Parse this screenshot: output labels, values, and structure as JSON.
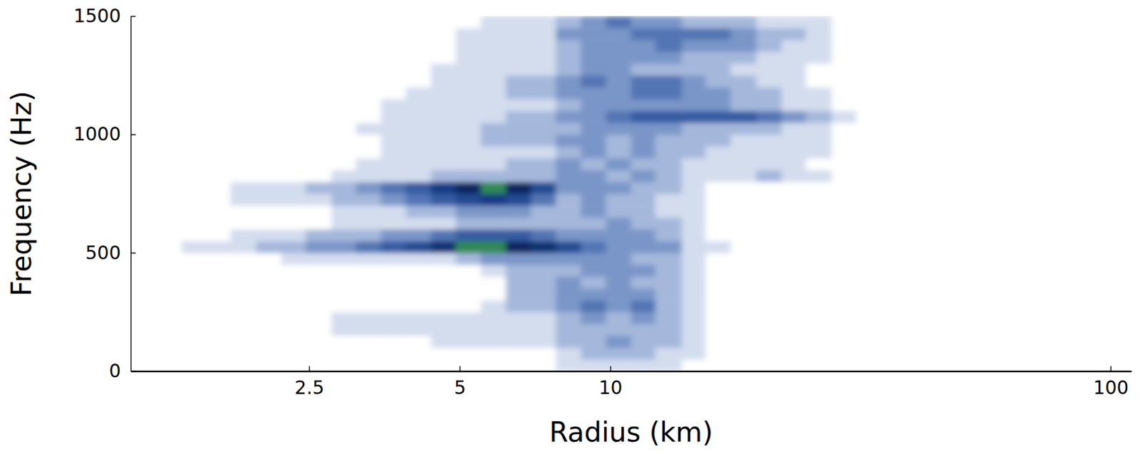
{
  "chart_data": {
    "type": "heatmap",
    "xlabel": "Radius (km)",
    "ylabel": "Frequency (Hz)",
    "log": "x",
    "grid": false,
    "xlim": [
      1.1,
      110
    ],
    "ylim": [
      0,
      1500
    ],
    "xticks": [
      2.5,
      5,
      10,
      100
    ],
    "yticks": [
      0,
      500,
      1000,
      1500
    ],
    "x_bins": [
      1.1,
      1.23,
      1.39,
      1.55,
      1.74,
      1.96,
      2.2,
      2.46,
      2.77,
      3.1,
      3.48,
      3.9,
      4.38,
      4.91,
      5.51,
      6.18,
      6.94,
      7.78,
      8.73,
      9.8,
      11,
      12.3,
      13.9,
      15.5,
      17.4,
      19.6,
      22,
      24.6,
      27.7,
      31,
      34.8,
      39,
      43.8,
      49.1,
      55.1,
      61.8,
      69.4,
      77.8,
      87.3,
      98,
      110
    ],
    "y_bins": [
      0,
      50,
      100,
      150,
      200,
      250,
      300,
      350,
      400,
      450,
      500,
      550,
      600,
      650,
      700,
      750,
      800,
      850,
      900,
      950,
      1000,
      1050,
      1100,
      1150,
      1200,
      1250,
      1300,
      1350,
      1400,
      1450,
      1500
    ],
    "zlim": [
      0,
      10
    ],
    "cells": [
      [
        0,
        0,
        0,
        0,
        0,
        0,
        0,
        0,
        0,
        0,
        0,
        0,
        0,
        0,
        0,
        0,
        0,
        1,
        1,
        1,
        1,
        1,
        0,
        0,
        0,
        0,
        0,
        0,
        0,
        0,
        0,
        0,
        0,
        0,
        0,
        0,
        0,
        0,
        0,
        0
      ],
      [
        0,
        0,
        0,
        0,
        0,
        0,
        0,
        0,
        0,
        0,
        0,
        0,
        0,
        0,
        0,
        0,
        0,
        1,
        2,
        2,
        2,
        1,
        1,
        0,
        0,
        0,
        0,
        0,
        0,
        0,
        0,
        0,
        0,
        0,
        0,
        0,
        0,
        0,
        0,
        0
      ],
      [
        0,
        0,
        0,
        0,
        0,
        0,
        0,
        0,
        0,
        0,
        0,
        0,
        1,
        1,
        1,
        1,
        1,
        2,
        2,
        3,
        2,
        2,
        1,
        0,
        0,
        0,
        0,
        0,
        0,
        0,
        0,
        0,
        0,
        0,
        0,
        0,
        0,
        0,
        0,
        0
      ],
      [
        0,
        0,
        0,
        0,
        0,
        0,
        0,
        0,
        1,
        1,
        1,
        1,
        1,
        1,
        1,
        1,
        1,
        2,
        2,
        2,
        2,
        2,
        1,
        0,
        0,
        0,
        0,
        0,
        0,
        0,
        0,
        0,
        0,
        0,
        0,
        0,
        0,
        0,
        0,
        0
      ],
      [
        0,
        0,
        0,
        0,
        0,
        0,
        0,
        0,
        1,
        1,
        1,
        1,
        1,
        1,
        1,
        1,
        1,
        2,
        3,
        2,
        3,
        2,
        1,
        0,
        0,
        0,
        0,
        0,
        0,
        0,
        0,
        0,
        0,
        0,
        0,
        0,
        0,
        0,
        0,
        0
      ],
      [
        0,
        0,
        0,
        0,
        0,
        0,
        0,
        0,
        0,
        0,
        0,
        0,
        0,
        0,
        1,
        2,
        2,
        3,
        4,
        3,
        4,
        2,
        1,
        0,
        0,
        0,
        0,
        0,
        0,
        0,
        0,
        0,
        0,
        0,
        0,
        0,
        0,
        0,
        0,
        0
      ],
      [
        0,
        0,
        0,
        0,
        0,
        0,
        0,
        0,
        0,
        0,
        0,
        0,
        0,
        0,
        0,
        2,
        2,
        3,
        3,
        3,
        3,
        2,
        1,
        0,
        0,
        0,
        0,
        0,
        0,
        0,
        0,
        0,
        0,
        0,
        0,
        0,
        0,
        0,
        0,
        0
      ],
      [
        0,
        0,
        0,
        0,
        0,
        0,
        0,
        0,
        0,
        0,
        0,
        0,
        0,
        0,
        0,
        2,
        2,
        3,
        2,
        3,
        2,
        2,
        1,
        0,
        0,
        0,
        0,
        0,
        0,
        0,
        0,
        0,
        0,
        0,
        0,
        0,
        0,
        0,
        0,
        0
      ],
      [
        0,
        0,
        0,
        0,
        0,
        0,
        0,
        0,
        0,
        0,
        0,
        0,
        0,
        0,
        1,
        2,
        2,
        2,
        3,
        3,
        3,
        2,
        1,
        0,
        0,
        0,
        0,
        0,
        0,
        0,
        0,
        0,
        0,
        0,
        0,
        0,
        0,
        0,
        0,
        0
      ],
      [
        0,
        0,
        0,
        0,
        0,
        0,
        1,
        1,
        1,
        1,
        1,
        1,
        1,
        2,
        3,
        3,
        3,
        3,
        3,
        3,
        2,
        2,
        1,
        0,
        0,
        0,
        0,
        0,
        0,
        0,
        0,
        0,
        0,
        0,
        0,
        0,
        0,
        0,
        0,
        0
      ],
      [
        0,
        0,
        1,
        1,
        1,
        2,
        2,
        3,
        3,
        4,
        5,
        6,
        8,
        10,
        10,
        9,
        8,
        6,
        4,
        3,
        3,
        3,
        1,
        1,
        0,
        0,
        0,
        0,
        0,
        0,
        0,
        0,
        0,
        0,
        0,
        0,
        0,
        0,
        0,
        0
      ],
      [
        0,
        0,
        0,
        0,
        1,
        1,
        1,
        2,
        2,
        2,
        3,
        3,
        4,
        5,
        5,
        5,
        4,
        3,
        3,
        3,
        3,
        2,
        1,
        0,
        0,
        0,
        0,
        0,
        0,
        0,
        0,
        0,
        0,
        0,
        0,
        0,
        0,
        0,
        0,
        0
      ],
      [
        0,
        0,
        0,
        0,
        0,
        0,
        0,
        0,
        1,
        1,
        1,
        1,
        1,
        2,
        2,
        2,
        2,
        2,
        2,
        3,
        2,
        2,
        1,
        0,
        0,
        0,
        0,
        0,
        0,
        0,
        0,
        0,
        0,
        0,
        0,
        0,
        0,
        0,
        0,
        0
      ],
      [
        0,
        0,
        0,
        0,
        0,
        0,
        0,
        0,
        1,
        1,
        1,
        2,
        2,
        3,
        3,
        3,
        2,
        2,
        3,
        2,
        2,
        1,
        1,
        0,
        0,
        0,
        0,
        0,
        0,
        0,
        0,
        0,
        0,
        0,
        0,
        0,
        0,
        0,
        0,
        0
      ],
      [
        0,
        0,
        0,
        0,
        1,
        1,
        1,
        1,
        2,
        2,
        3,
        4,
        5,
        6,
        7,
        6,
        4,
        2,
        3,
        2,
        2,
        1,
        1,
        0,
        0,
        0,
        0,
        0,
        0,
        0,
        0,
        0,
        0,
        0,
        0,
        0,
        0,
        0,
        0,
        0
      ],
      [
        0,
        0,
        0,
        0,
        1,
        1,
        1,
        2,
        2,
        3,
        4,
        5,
        7,
        9,
        10,
        9,
        6,
        3,
        3,
        3,
        2,
        2,
        1,
        0,
        0,
        0,
        0,
        0,
        0,
        0,
        0,
        0,
        0,
        0,
        0,
        0,
        0,
        0,
        0,
        0
      ],
      [
        0,
        0,
        0,
        0,
        0,
        0,
        0,
        0,
        1,
        1,
        1,
        1,
        2,
        2,
        2,
        2,
        2,
        3,
        3,
        2,
        3,
        2,
        1,
        1,
        1,
        2,
        1,
        1,
        0,
        0,
        0,
        0,
        0,
        0,
        0,
        0,
        0,
        0,
        0,
        0
      ],
      [
        0,
        0,
        0,
        0,
        0,
        0,
        0,
        0,
        0,
        1,
        1,
        1,
        1,
        1,
        1,
        2,
        2,
        3,
        2,
        3,
        2,
        2,
        1,
        1,
        1,
        1,
        1,
        0,
        0,
        0,
        0,
        0,
        0,
        0,
        0,
        0,
        0,
        0,
        0,
        0
      ],
      [
        0,
        0,
        0,
        0,
        0,
        0,
        0,
        0,
        0,
        0,
        1,
        1,
        1,
        1,
        1,
        1,
        1,
        2,
        3,
        2,
        3,
        2,
        2,
        1,
        1,
        1,
        1,
        1,
        0,
        0,
        0,
        0,
        0,
        0,
        0,
        0,
        0,
        0,
        0,
        0
      ],
      [
        0,
        0,
        0,
        0,
        0,
        0,
        0,
        0,
        0,
        0,
        1,
        1,
        1,
        1,
        2,
        2,
        2,
        3,
        3,
        2,
        3,
        2,
        2,
        2,
        1,
        1,
        1,
        1,
        0,
        0,
        0,
        0,
        0,
        0,
        0,
        0,
        0,
        0,
        0,
        0
      ],
      [
        0,
        0,
        0,
        0,
        0,
        0,
        0,
        0,
        0,
        1,
        1,
        1,
        1,
        1,
        2,
        2,
        2,
        2,
        3,
        3,
        3,
        3,
        2,
        2,
        2,
        2,
        1,
        1,
        0,
        0,
        0,
        0,
        0,
        0,
        0,
        0,
        0,
        0,
        0,
        0
      ],
      [
        0,
        0,
        0,
        0,
        0,
        0,
        0,
        0,
        0,
        0,
        1,
        1,
        1,
        1,
        1,
        2,
        2,
        3,
        3,
        4,
        5,
        5,
        5,
        5,
        5,
        4,
        3,
        2,
        1,
        0,
        0,
        0,
        0,
        0,
        0,
        0,
        0,
        0,
        0,
        0
      ],
      [
        0,
        0,
        0,
        0,
        0,
        0,
        0,
        0,
        0,
        0,
        1,
        1,
        1,
        1,
        1,
        1,
        1,
        2,
        3,
        3,
        3,
        3,
        3,
        3,
        2,
        2,
        1,
        1,
        0,
        0,
        0,
        0,
        0,
        0,
        0,
        0,
        0,
        0,
        0,
        0
      ],
      [
        0,
        0,
        0,
        0,
        0,
        0,
        0,
        0,
        0,
        0,
        0,
        1,
        1,
        1,
        1,
        2,
        2,
        3,
        3,
        3,
        4,
        4,
        3,
        3,
        2,
        2,
        1,
        1,
        0,
        0,
        0,
        0,
        0,
        0,
        0,
        0,
        0,
        0,
        0,
        0
      ],
      [
        0,
        0,
        0,
        0,
        0,
        0,
        0,
        0,
        0,
        0,
        0,
        0,
        1,
        1,
        1,
        2,
        2,
        3,
        4,
        3,
        4,
        4,
        3,
        2,
        2,
        1,
        1,
        0,
        0,
        0,
        0,
        0,
        0,
        0,
        0,
        0,
        0,
        0,
        0,
        0
      ],
      [
        0,
        0,
        0,
        0,
        0,
        0,
        0,
        0,
        0,
        0,
        0,
        0,
        1,
        1,
        1,
        1,
        1,
        2,
        3,
        3,
        2,
        2,
        2,
        2,
        1,
        1,
        1,
        0,
        0,
        0,
        0,
        0,
        0,
        0,
        0,
        0,
        0,
        0,
        0,
        0
      ],
      [
        0,
        0,
        0,
        0,
        0,
        0,
        0,
        0,
        0,
        0,
        0,
        0,
        0,
        1,
        1,
        1,
        1,
        2,
        3,
        3,
        3,
        3,
        2,
        2,
        2,
        1,
        1,
        1,
        0,
        0,
        0,
        0,
        0,
        0,
        0,
        0,
        0,
        0,
        0,
        0
      ],
      [
        0,
        0,
        0,
        0,
        0,
        0,
        0,
        0,
        0,
        0,
        0,
        0,
        0,
        1,
        1,
        1,
        1,
        2,
        3,
        3,
        3,
        4,
        3,
        3,
        3,
        2,
        1,
        1,
        0,
        0,
        0,
        0,
        0,
        0,
        0,
        0,
        0,
        0,
        0,
        0
      ],
      [
        0,
        0,
        0,
        0,
        0,
        0,
        0,
        0,
        0,
        0,
        0,
        0,
        0,
        1,
        1,
        1,
        1,
        3,
        3,
        3,
        4,
        4,
        4,
        4,
        3,
        2,
        2,
        1,
        0,
        0,
        0,
        0,
        0,
        0,
        0,
        0,
        0,
        0,
        0,
        0
      ],
      [
        0,
        0,
        0,
        0,
        0,
        0,
        0,
        0,
        0,
        0,
        0,
        0,
        0,
        0,
        1,
        1,
        1,
        2,
        3,
        4,
        3,
        3,
        2,
        2,
        2,
        1,
        1,
        1,
        0,
        0,
        0,
        0,
        0,
        0,
        0,
        0,
        0,
        0,
        0,
        0
      ]
    ]
  }
}
